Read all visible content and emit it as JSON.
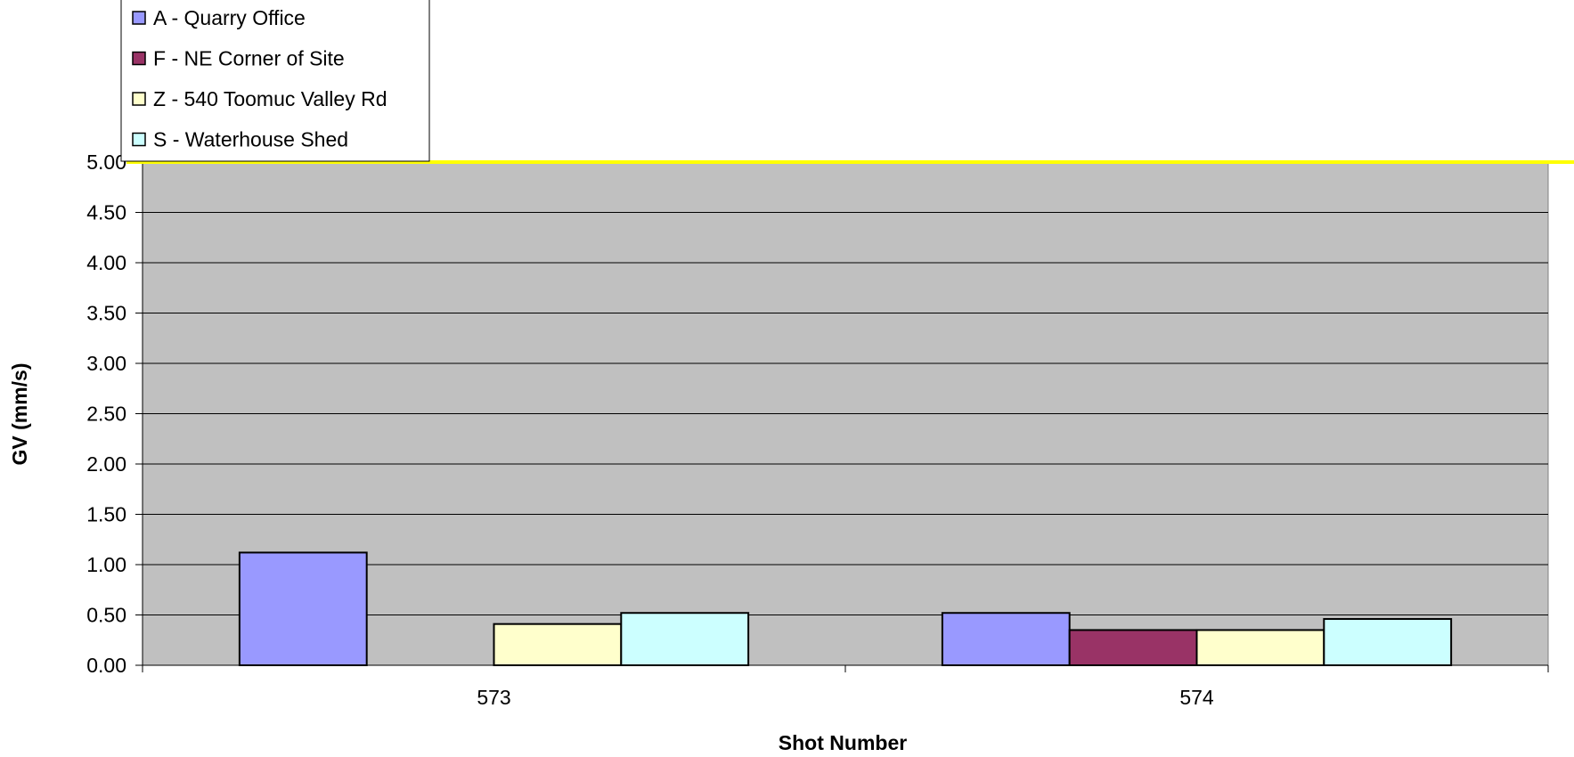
{
  "chart_data": {
    "type": "bar",
    "title": "",
    "xlabel": "Shot Number",
    "ylabel": "GV (mm/s)",
    "categories": [
      "573",
      "574"
    ],
    "ylim": [
      0,
      5
    ],
    "yticks": [
      "0.00",
      "0.50",
      "1.00",
      "1.50",
      "2.00",
      "2.50",
      "3.00",
      "3.50",
      "4.00",
      "4.50",
      "5.00"
    ],
    "grid": true,
    "legend_position": "top-left",
    "plot_background": "#C0C0C0",
    "reference_line": {
      "value": 5.0,
      "color": "#FFFF00"
    },
    "series": [
      {
        "name": "A - Quarry Office",
        "color": "#9999FF",
        "values": [
          1.12,
          0.52
        ]
      },
      {
        "name": "F - NE Corner of Site",
        "color": "#993366",
        "values": [
          null,
          0.35
        ]
      },
      {
        "name": "Z - 540 Toomuc Valley Rd",
        "color": "#FFFFCC",
        "values": [
          0.41,
          0.35
        ]
      },
      {
        "name": "S - Waterhouse Shed",
        "color": "#CCFFFF",
        "values": [
          0.52,
          0.46
        ]
      }
    ]
  }
}
